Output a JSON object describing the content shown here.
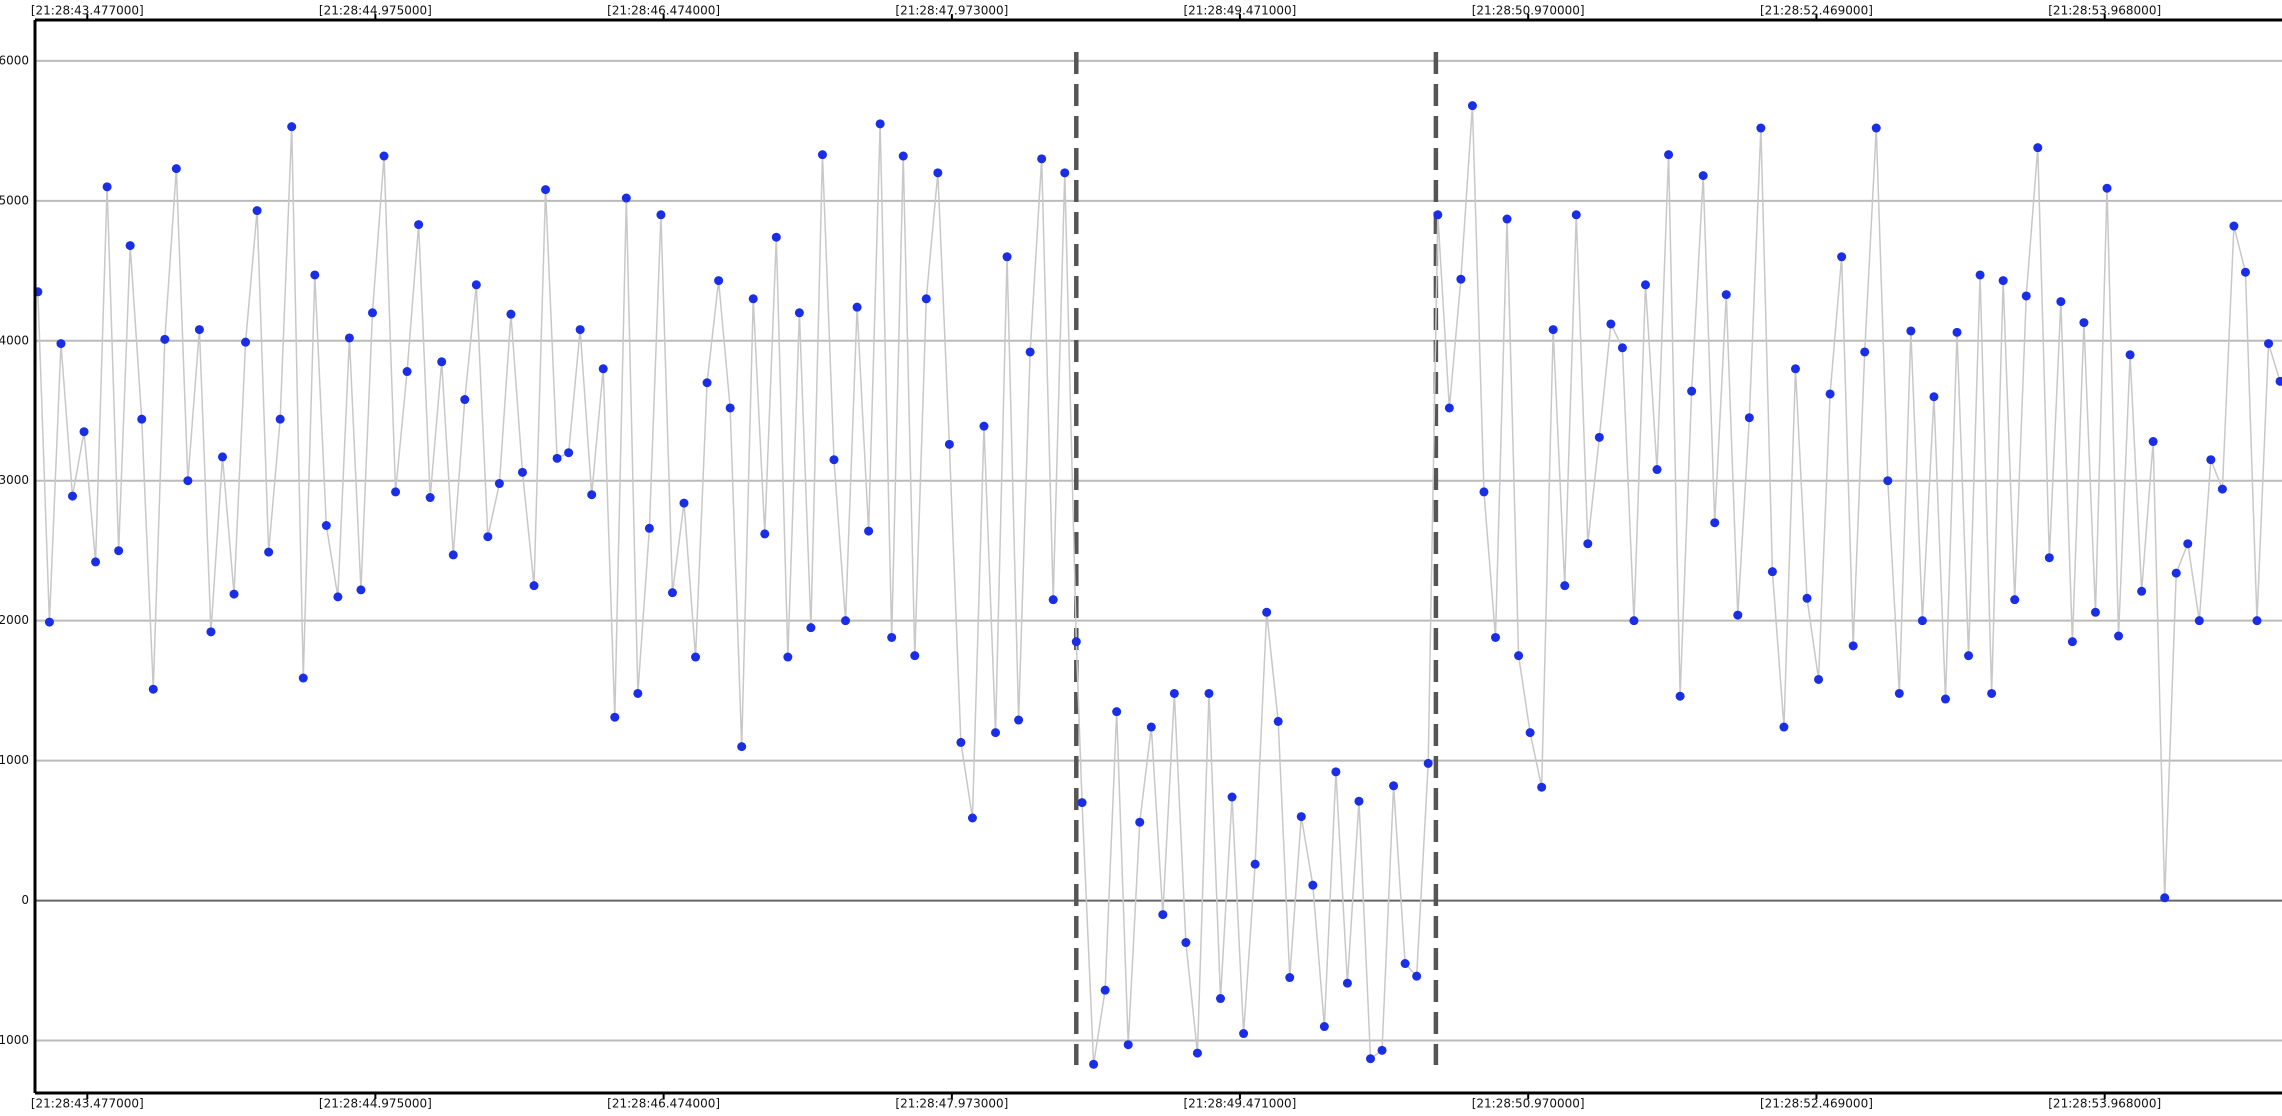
{
  "chart_data": {
    "type": "scatter",
    "xlim": [
      43.205,
      54.89
    ],
    "ylim": [
      -1375,
      6292
    ],
    "xticks": [
      {
        "value": 43.477,
        "label": "[21:28:43.477000]"
      },
      {
        "value": 44.975,
        "label": "[21:28:44.975000]"
      },
      {
        "value": 46.474,
        "label": "[21:28:46.474000]"
      },
      {
        "value": 47.973,
        "label": "[21:28:47.973000]"
      },
      {
        "value": 49.471,
        "label": "[21:28:49.471000]"
      },
      {
        "value": 50.97,
        "label": "[21:28:50.970000]"
      },
      {
        "value": 52.469,
        "label": "[21:28:52.469000]"
      },
      {
        "value": 53.968,
        "label": "[21:28:53.968000]"
      }
    ],
    "yticks": [
      -1000,
      0,
      1000,
      2000,
      3000,
      4000,
      5000,
      6000
    ],
    "grid": true,
    "vlines": [
      48.62,
      50.49
    ],
    "series": [
      {
        "color": "#1a2ee6",
        "line_color": "#c8c8c8",
        "x": [
          43.22,
          43.28,
          43.34,
          43.4,
          43.46,
          43.52,
          43.58,
          43.64,
          43.7,
          43.76,
          43.82,
          43.88,
          43.94,
          44.0,
          44.06,
          44.12,
          44.18,
          44.24,
          44.3,
          44.36,
          44.42,
          44.48,
          44.54,
          44.6,
          44.66,
          44.72,
          44.78,
          44.84,
          44.9,
          44.96,
          45.02,
          45.08,
          45.14,
          45.2,
          45.26,
          45.32,
          45.38,
          45.44,
          45.5,
          45.56,
          45.62,
          45.68,
          45.74,
          45.8,
          45.86,
          45.92,
          45.98,
          46.04,
          46.1,
          46.16,
          46.22,
          46.28,
          46.34,
          46.4,
          46.46,
          46.52,
          46.58,
          46.64,
          46.7,
          46.76,
          46.82,
          46.88,
          46.94,
          47.0,
          47.06,
          47.12,
          47.18,
          47.24,
          47.3,
          47.36,
          47.42,
          47.48,
          47.54,
          47.6,
          47.66,
          47.72,
          47.78,
          47.84,
          47.9,
          47.96,
          48.02,
          48.08,
          48.14,
          48.2,
          48.26,
          48.32,
          48.38,
          48.44,
          48.5,
          48.56,
          48.62,
          48.65,
          48.71,
          48.77,
          48.83,
          48.89,
          48.95,
          49.01,
          49.07,
          49.13,
          49.19,
          49.25,
          49.31,
          49.37,
          49.43,
          49.49,
          49.55,
          49.61,
          49.67,
          49.73,
          49.79,
          49.85,
          49.91,
          49.97,
          50.03,
          50.09,
          50.15,
          50.21,
          50.27,
          50.33,
          50.39,
          50.45,
          50.5,
          50.56,
          50.62,
          50.68,
          50.74,
          50.8,
          50.86,
          50.92,
          50.98,
          51.04,
          51.1,
          51.16,
          51.22,
          51.28,
          51.34,
          51.4,
          51.46,
          51.52,
          51.58,
          51.64,
          51.7,
          51.76,
          51.82,
          51.88,
          51.94,
          52.0,
          52.06,
          52.12,
          52.18,
          52.24,
          52.3,
          52.36,
          52.42,
          52.48,
          52.54,
          52.6,
          52.66,
          52.72,
          52.78,
          52.84,
          52.9,
          52.96,
          53.02,
          53.08,
          53.14,
          53.2,
          53.26,
          53.32,
          53.38,
          53.44,
          53.5,
          53.56,
          53.62,
          53.68,
          53.74,
          53.8,
          53.86,
          53.92,
          53.98,
          54.04,
          54.1,
          54.16,
          54.22,
          54.28,
          54.34,
          54.4,
          54.46,
          54.52,
          54.58,
          54.64,
          54.7,
          54.76,
          54.82,
          54.88
        ],
        "values": [
          4350,
          1990,
          3980,
          2890,
          3350,
          2420,
          5100,
          2500,
          4680,
          3440,
          1510,
          4010,
          5230,
          3000,
          4080,
          1920,
          3170,
          2190,
          3990,
          4930,
          2490,
          3440,
          5530,
          1590,
          4470,
          2680,
          2170,
          4020,
          2220,
          4200,
          5320,
          2920,
          3780,
          4830,
          2880,
          3850,
          2470,
          3580,
          4400,
          2600,
          2980,
          4190,
          3060,
          2250,
          5080,
          3160,
          3200,
          4080,
          2900,
          3800,
          1310,
          5020,
          1480,
          2660,
          4900,
          2200,
          2840,
          1740,
          3700,
          4430,
          3520,
          1100,
          4300,
          2620,
          4740,
          1740,
          4200,
          1950,
          5330,
          3150,
          2000,
          4240,
          2640,
          5550,
          1880,
          5320,
          1750,
          4300,
          5200,
          3260,
          1130,
          590,
          3390,
          1200,
          4600,
          1290,
          3920,
          5300,
          2150,
          5200,
          1850,
          700,
          -1170,
          -640,
          1350,
          -1030,
          560,
          1240,
          -100,
          1480,
          -300,
          -1090,
          1480,
          -700,
          740,
          -950,
          260,
          2060,
          1280,
          -550,
          600,
          110,
          -900,
          920,
          -590,
          710,
          -1130,
          -1070,
          820,
          -450,
          -540,
          980,
          4900,
          3520,
          4440,
          5680,
          2920,
          1880,
          4870,
          1750,
          1200,
          810,
          4080,
          2250,
          4900,
          2550,
          3310,
          4120,
          3950,
          2000,
          4400,
          3080,
          5330,
          1460,
          3640,
          5180,
          2700,
          4330,
          2040,
          3450,
          5520,
          2350,
          1240,
          3800,
          2160,
          1580,
          3620,
          4600,
          1820,
          3920,
          5520,
          3000,
          1480,
          4070,
          2000,
          3600,
          1440,
          4060,
          1750,
          4470,
          1480,
          4430,
          2150,
          4320,
          5380,
          2450,
          4280,
          1850,
          4130,
          2060,
          5090,
          1890,
          3900,
          2210,
          3280,
          20,
          2340,
          2550,
          2000,
          3150,
          2940,
          4820,
          4490,
          2000,
          3980,
          3710
        ]
      }
    ]
  }
}
